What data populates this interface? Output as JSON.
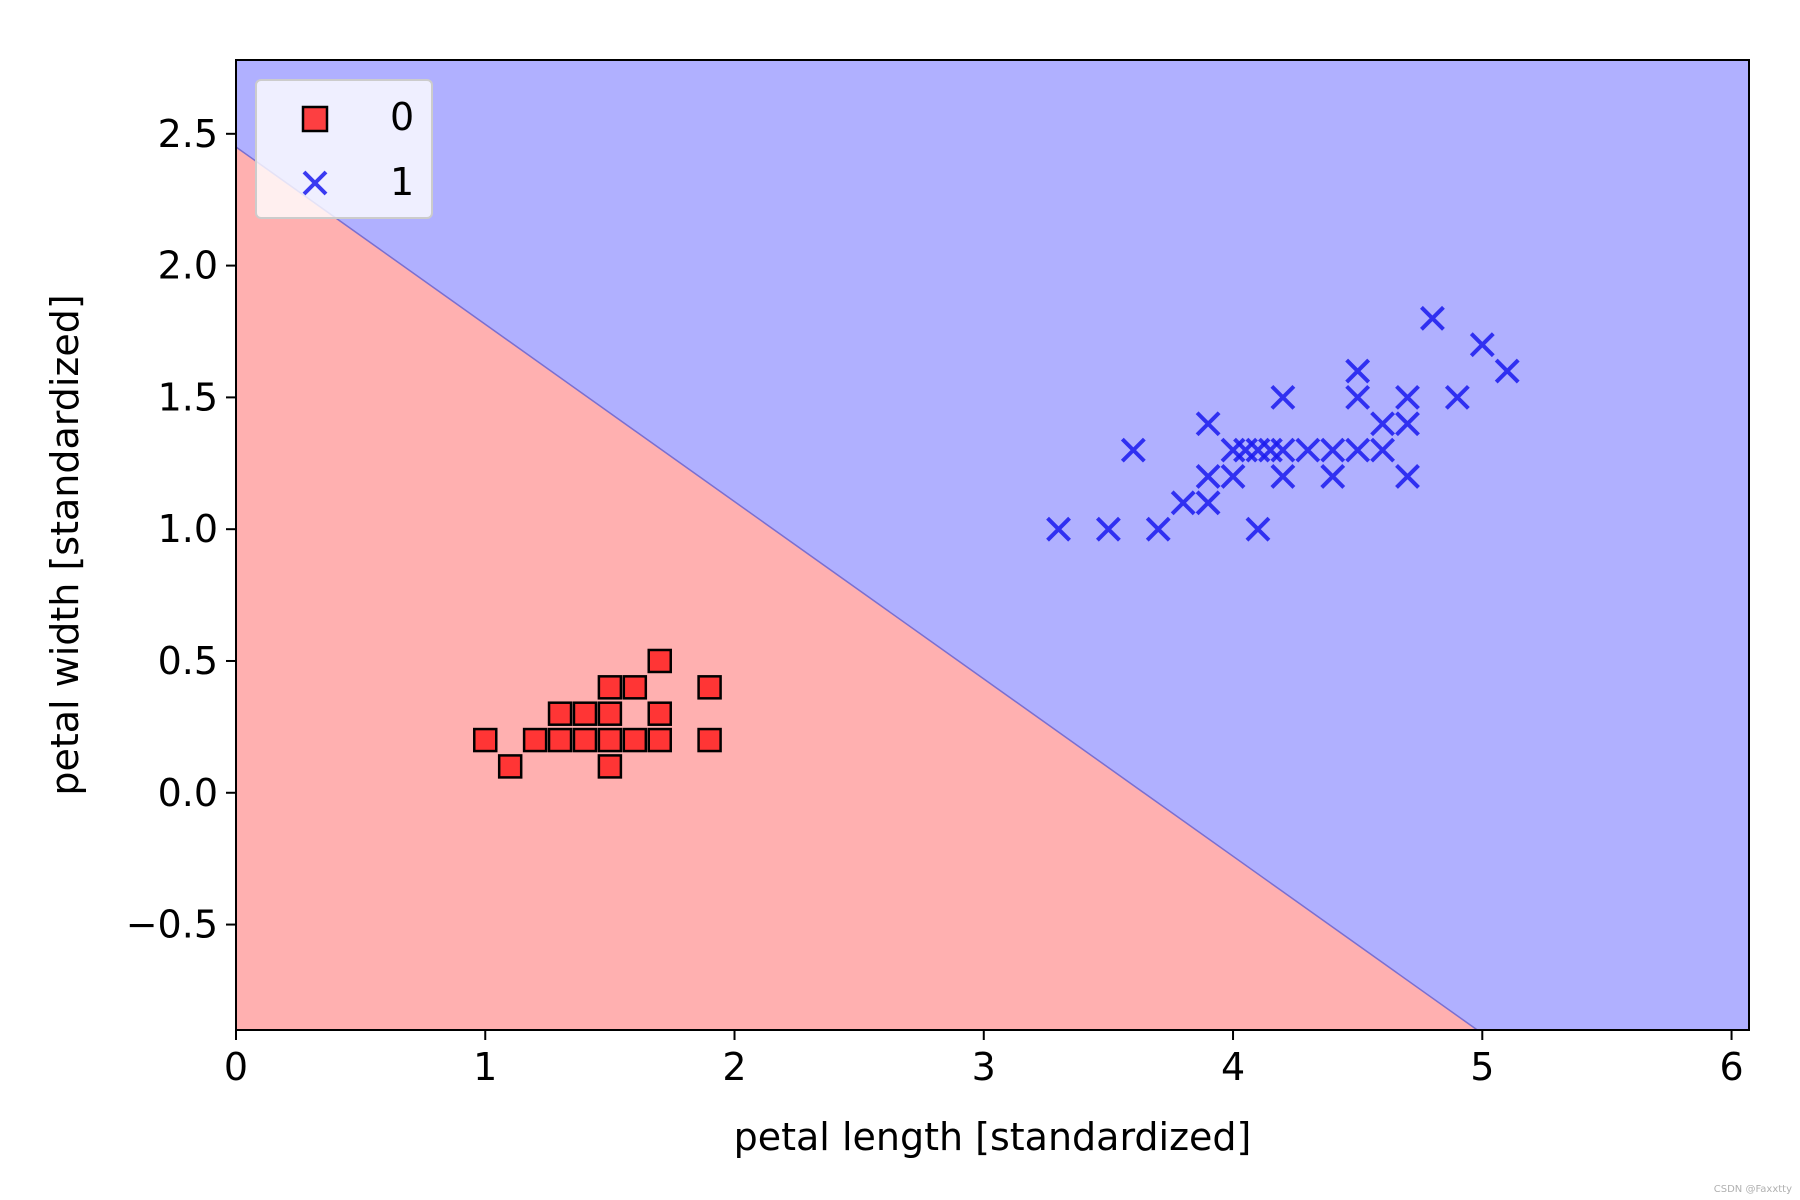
{
  "chart_data": {
    "type": "scatter",
    "title": "",
    "xlabel": "petal length [standardized]",
    "ylabel": "petal width [standardized]",
    "xlim": [
      0,
      6.07
    ],
    "ylim": [
      -0.9,
      2.78
    ],
    "xticks": [
      0,
      1,
      2,
      3,
      4,
      5,
      6
    ],
    "yticks": [
      -0.5,
      0.0,
      0.5,
      1.0,
      1.5,
      2.0,
      2.5
    ],
    "xtick_labels": [
      "0",
      "1",
      "2",
      "3",
      "4",
      "5",
      "6"
    ],
    "ytick_labels": [
      "−0.5",
      "0.0",
      "0.5",
      "1.0",
      "1.5",
      "2.0",
      "2.5"
    ],
    "grid": false,
    "legend_position": "top-left",
    "decision_boundary": {
      "points": [
        [
          0,
          2.45
        ],
        [
          4.98,
          -0.9
        ]
      ],
      "region_below_color": "#ffb0b0",
      "region_above_color": "#b0b0ff"
    },
    "series": [
      {
        "name": "0",
        "marker": "square",
        "color": "#ff2020",
        "edge_color": "#000000",
        "points": [
          [
            1.0,
            0.2
          ],
          [
            1.1,
            0.1
          ],
          [
            1.2,
            0.2
          ],
          [
            1.3,
            0.2
          ],
          [
            1.3,
            0.3
          ],
          [
            1.4,
            0.2
          ],
          [
            1.4,
            0.3
          ],
          [
            1.5,
            0.1
          ],
          [
            1.5,
            0.2
          ],
          [
            1.5,
            0.3
          ],
          [
            1.5,
            0.4
          ],
          [
            1.6,
            0.2
          ],
          [
            1.6,
            0.4
          ],
          [
            1.7,
            0.2
          ],
          [
            1.7,
            0.3
          ],
          [
            1.7,
            0.5
          ],
          [
            1.9,
            0.2
          ],
          [
            1.9,
            0.4
          ]
        ]
      },
      {
        "name": "1",
        "marker": "x",
        "color": "#1a1aee",
        "points": [
          [
            3.3,
            1.0
          ],
          [
            3.5,
            1.0
          ],
          [
            3.6,
            1.3
          ],
          [
            3.7,
            1.0
          ],
          [
            3.8,
            1.1
          ],
          [
            3.9,
            1.1
          ],
          [
            3.9,
            1.2
          ],
          [
            3.9,
            1.4
          ],
          [
            4.0,
            1.2
          ],
          [
            4.0,
            1.3
          ],
          [
            4.1,
            1.0
          ],
          [
            4.1,
            1.3
          ],
          [
            4.2,
            1.2
          ],
          [
            4.2,
            1.3
          ],
          [
            4.2,
            1.5
          ],
          [
            4.3,
            1.3
          ],
          [
            4.4,
            1.2
          ],
          [
            4.4,
            1.3
          ],
          [
            4.5,
            1.3
          ],
          [
            4.5,
            1.5
          ],
          [
            4.5,
            1.6
          ],
          [
            4.6,
            1.3
          ],
          [
            4.6,
            1.4
          ],
          [
            4.7,
            1.2
          ],
          [
            4.7,
            1.4
          ],
          [
            4.7,
            1.5
          ],
          [
            4.8,
            1.8
          ],
          [
            4.9,
            1.5
          ],
          [
            5.0,
            1.7
          ],
          [
            5.1,
            1.6
          ],
          [
            4.05,
            1.3
          ],
          [
            4.15,
            1.3
          ]
        ]
      }
    ]
  },
  "watermark": "CSDN @Faxxtty"
}
